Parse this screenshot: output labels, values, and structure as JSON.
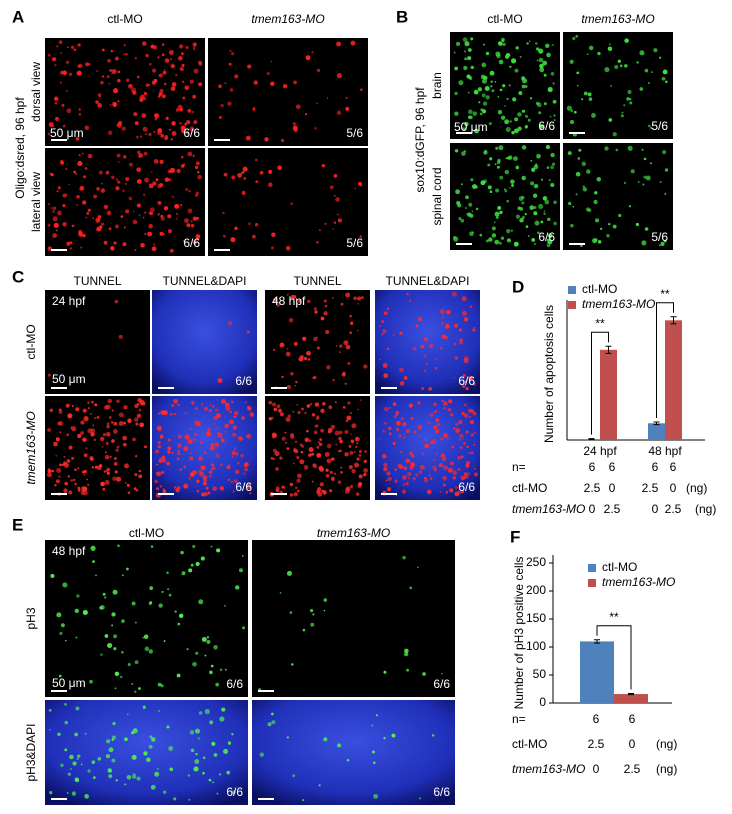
{
  "panels": {
    "A": {
      "label": "A",
      "columns": [
        "ctl-MO",
        "tmem163-MO"
      ],
      "side_label": "Oligo:dsred, 96 hpf",
      "rows": [
        "dorsal view",
        "lateral view"
      ],
      "scale": "50 μm",
      "counts": [
        "6/6",
        "5/6",
        "6/6",
        "5/6"
      ]
    },
    "B": {
      "label": "B",
      "columns": [
        "ctl-MO",
        "tmem163-MO"
      ],
      "side_label": "sox10:dGFP, 96 hpf",
      "rows": [
        "brain",
        "spinal cord"
      ],
      "scale": "50 μm",
      "counts": [
        "6/6",
        "5/6",
        "6/6",
        "5/6"
      ]
    },
    "C": {
      "label": "C",
      "columns": [
        "TUNNEL",
        "TUNNEL&DAPI",
        "TUNNEL",
        "TUNNEL&DAPI"
      ],
      "rows": [
        "ctl-MO",
        "tmem163-MO"
      ],
      "stages": [
        "24 hpf",
        "48 hpf"
      ],
      "scale": "50 μm",
      "counts": [
        "6/6",
        "6/6",
        "6/6",
        "6/6"
      ]
    },
    "E": {
      "label": "E",
      "columns": [
        "ctl-MO",
        "tmem163-MO"
      ],
      "rows": [
        "pH3",
        "pH3&DAPI"
      ],
      "stage": "48 hpf",
      "scale": "50 μm",
      "counts": [
        "6/6",
        "6/6",
        "6/6",
        "6/6"
      ]
    }
  },
  "chart_data": [
    {
      "type": "bar",
      "label": "D",
      "y_label": "Number of apoptosis cells",
      "categories": [
        "24 hpf",
        "48 hpf"
      ],
      "series": [
        {
          "name": "ctl-MO",
          "color": "#4f81bd",
          "values": [
            2,
            38
          ],
          "errors": [
            1,
            3
          ]
        },
        {
          "name": "tmem163-MO",
          "color": "#c0504d",
          "values": [
            205,
            272
          ],
          "errors": [
            8,
            8
          ]
        }
      ],
      "ylim": [
        0,
        300
      ],
      "annotations": [
        "**",
        "**"
      ]
    },
    {
      "type": "bar",
      "label": "F",
      "y_label": "Number of pH3 positive cells",
      "categories": [
        null
      ],
      "series": [
        {
          "name": "ctl-MO",
          "color": "#4f81bd",
          "values": [
            110
          ],
          "errors": [
            3
          ]
        },
        {
          "name": "tmem163-MO",
          "color": "#c0504d",
          "values": [
            16
          ],
          "errors": [
            1
          ]
        }
      ],
      "ylim": [
        0,
        250
      ],
      "yticks": [
        0,
        50,
        100,
        150,
        200,
        250
      ],
      "annotations": [
        "**"
      ]
    }
  ],
  "tables": {
    "D": {
      "rows": [
        [
          "n=",
          "6",
          "6",
          "6",
          "6"
        ],
        [
          "ctl-MO",
          "2.5",
          "0",
          "2.5",
          "0",
          "(ng)"
        ],
        [
          "tmem163-MO",
          "0",
          "2.5",
          "0",
          "2.5",
          "(ng)"
        ]
      ]
    },
    "F": {
      "rows": [
        [
          "n=",
          "6",
          "6"
        ],
        [
          "ctl-MO",
          "2.5",
          "0",
          "(ng)"
        ],
        [
          "tmem163-MO",
          "0",
          "2.5",
          "(ng)"
        ]
      ]
    }
  }
}
